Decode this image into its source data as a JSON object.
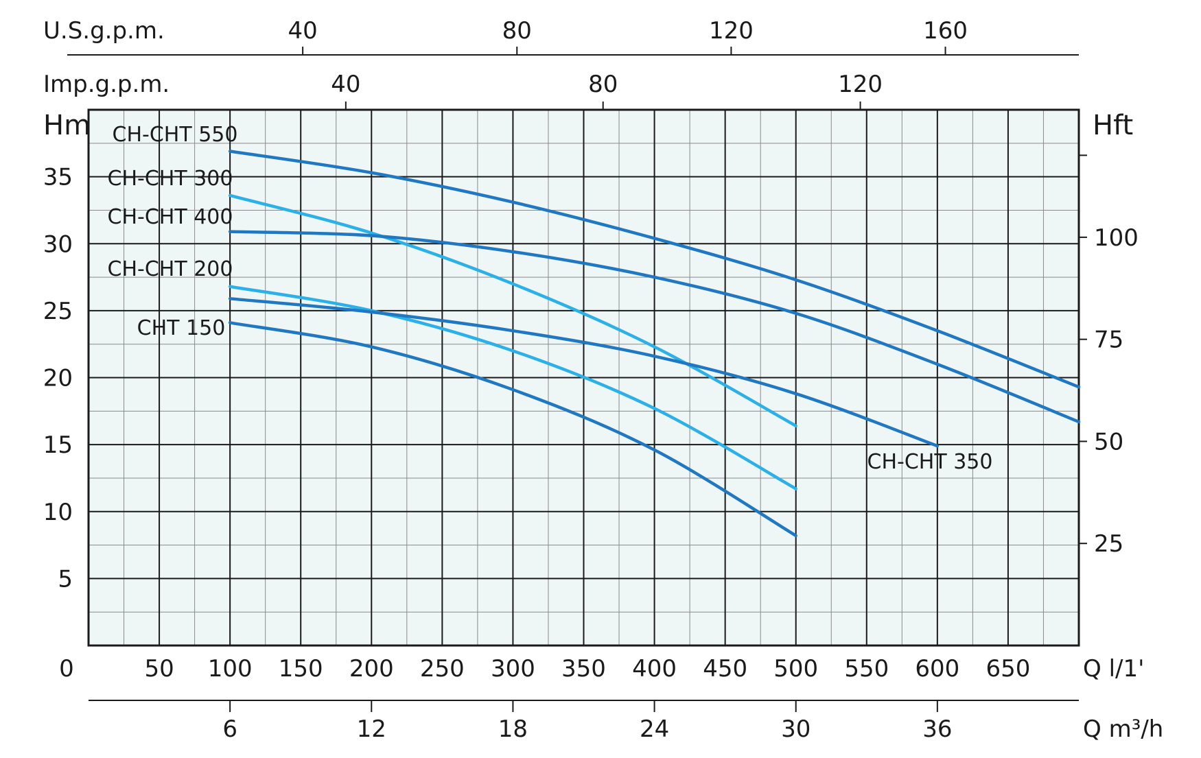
{
  "chart_data": {
    "type": "line",
    "x_axis_primary": {
      "label": "Q l/1'",
      "ticks": [
        "0",
        "50",
        "100",
        "150",
        "200",
        "250",
        "300",
        "350",
        "400",
        "450",
        "500",
        "550",
        "600",
        "650"
      ],
      "range": [
        0,
        700
      ]
    },
    "x_axis_m3h": {
      "label": "Q m³/h",
      "ticks": [
        "6",
        "12",
        "18",
        "24",
        "30",
        "36"
      ]
    },
    "x_axis_usgpm": {
      "label": "U.S.g.p.m.",
      "ticks": [
        "40",
        "80",
        "120",
        "160"
      ]
    },
    "x_axis_impgpm": {
      "label": "Imp.g.p.m.",
      "ticks": [
        "40",
        "80",
        "120"
      ]
    },
    "y_axis_left": {
      "label": "Hm",
      "ticks": [
        "5",
        "10",
        "15",
        "20",
        "25",
        "30",
        "35"
      ],
      "range": [
        0,
        40
      ]
    },
    "y_axis_right": {
      "label": "Hft",
      "ticks": [
        "25",
        "50",
        "75",
        "100"
      ]
    },
    "grid": true,
    "series": [
      {
        "name": "CH-CHT 550",
        "color": "#1f78c1",
        "x": [
          100,
          200,
          300,
          400,
          500,
          600,
          700
        ],
        "y": [
          36.9,
          35.3,
          33.1,
          30.4,
          27.3,
          23.5,
          19.3
        ]
      },
      {
        "name": "CH-CHT 300",
        "color": "#2bb0e8",
        "x": [
          100,
          200,
          300,
          400,
          500
        ],
        "y": [
          33.6,
          30.8,
          27.0,
          22.3,
          16.4
        ]
      },
      {
        "name": "CH-CHT 400",
        "color": "#1f78c1",
        "x": [
          100,
          200,
          300,
          400,
          500,
          600,
          700
        ],
        "y": [
          30.9,
          30.6,
          29.4,
          27.5,
          24.8,
          21.0,
          16.7
        ]
      },
      {
        "name": "CH-CHT 200",
        "color": "#2bb0e8",
        "x": [
          100,
          200,
          300,
          400,
          500
        ],
        "y": [
          26.8,
          25.0,
          22.0,
          17.7,
          11.7
        ]
      },
      {
        "name": "CH-CHT 350",
        "color": "#1f78c1",
        "x": [
          100,
          200,
          300,
          400,
          500,
          600
        ],
        "y": [
          25.9,
          24.9,
          23.5,
          21.6,
          18.8,
          14.9
        ]
      },
      {
        "name": "CHT 150",
        "color": "#1f78c1",
        "x": [
          100,
          200,
          300,
          400,
          500
        ],
        "y": [
          24.1,
          22.3,
          19.1,
          14.6,
          8.2
        ]
      }
    ]
  }
}
